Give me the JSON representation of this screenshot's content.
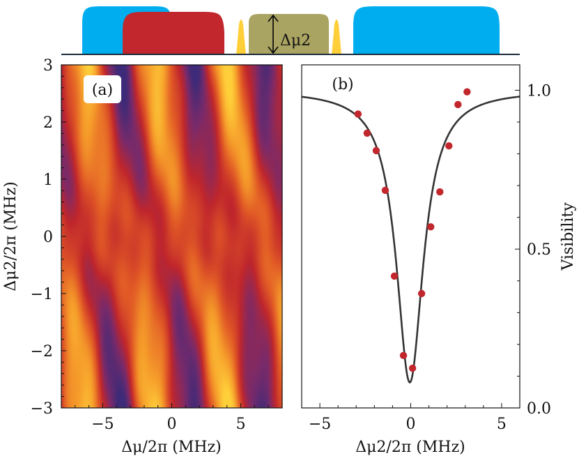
{
  "colors": {
    "pulse_blue": "#00aeef",
    "pulse_red": "#c1272d",
    "pulse_olive": "#aaa462",
    "pulse_yellow": "#ffcf3a",
    "fit_line": "#333333",
    "point": "#c1272d"
  },
  "pulse_diagram": {
    "arrow_label": "Δμ2",
    "pulses": [
      "blue",
      "red",
      "yellow",
      "olive",
      "yellow",
      "blue"
    ]
  },
  "chart_data": [
    {
      "type": "heatmap",
      "panel_label": "(a)",
      "xlabel": "Δμ/2π (MHz)",
      "ylabel": "Δμ2/2π (MHz)",
      "xlim": [
        -8,
        8
      ],
      "ylim": [
        -3,
        3
      ],
      "x_ticks": [
        -5,
        0,
        5
      ],
      "x_tick_labels": [
        "−5",
        "0",
        "5"
      ],
      "y_ticks": [
        -3,
        -2,
        -1,
        0,
        1,
        2,
        3
      ],
      "y_tick_labels": [
        "−3",
        "−2",
        "−1",
        "0",
        "1",
        "2",
        "3"
      ],
      "colormap": [
        "#3d2a78",
        "#7a2a6a",
        "#c0262c",
        "#e15a26",
        "#f59a2a",
        "#ffcf3a"
      ],
      "value_range": [
        0,
        1
      ]
    },
    {
      "type": "scatter",
      "panel_label": "(b)",
      "xlabel": "Δμ2/2π (MHz)",
      "ylabel": "Visibility",
      "xlim": [
        -6,
        6
      ],
      "ylim": [
        0,
        1.08
      ],
      "x_ticks": [
        -5,
        0,
        5
      ],
      "x_tick_labels": [
        "−5",
        "0",
        "5"
      ],
      "y_ticks": [
        0,
        0.5,
        1.0
      ],
      "y_tick_labels": [
        "0.0",
        "0.5",
        "1.0"
      ],
      "series": [
        {
          "name": "data",
          "x": [
            -2.9,
            -2.4,
            -1.9,
            -1.4,
            -0.9,
            -0.4,
            0.1,
            0.6,
            1.1,
            1.6,
            2.1,
            2.6,
            3.1
          ],
          "y": [
            0.925,
            0.865,
            0.81,
            0.685,
            0.415,
            0.165,
            0.125,
            0.36,
            0.57,
            0.68,
            0.825,
            0.955,
            0.995
          ]
        },
        {
          "name": "fit",
          "model": "lorentzian_dip",
          "baseline": 1.0,
          "depth": 0.92,
          "center": -0.05,
          "hwhm": 0.9
        }
      ]
    }
  ]
}
